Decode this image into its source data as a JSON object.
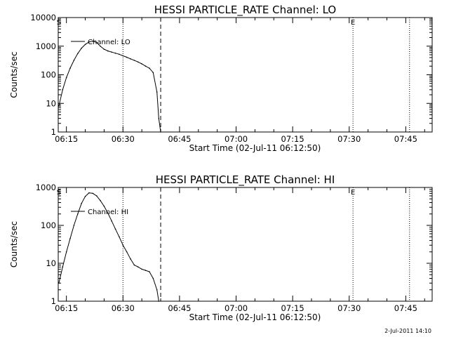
{
  "footer_stamp": "2-Jul-2011 14:10",
  "chart_data": [
    {
      "type": "line",
      "title": "HESSI PARTICLE_RATE Channel: LO",
      "xlabel": "Start Time (02-Jul-11 06:12:50)",
      "ylabel": "Counts/sec",
      "yscale": "log",
      "ylim": [
        1,
        10000
      ],
      "xlim_minutes": [
        12.83,
        112
      ],
      "x_ticks": [
        "06:15",
        "06:30",
        "06:45",
        "07:00",
        "07:15",
        "07:30",
        "07:45"
      ],
      "y_ticks": [
        "1",
        "10",
        "100",
        "1000",
        "10000"
      ],
      "grid": false,
      "legend": "top-left",
      "markers": [
        {
          "label": "S",
          "x": "06:13"
        },
        {
          "label": "E",
          "x": "07:31"
        }
      ],
      "vlines_dotted": [
        "06:30",
        "07:31",
        "07:46"
      ],
      "vlines_dashed": [
        "06:40"
      ],
      "series": [
        {
          "name": "Channel: LO",
          "x": [
            "06:13",
            "06:14",
            "06:15",
            "06:16",
            "06:17",
            "06:18",
            "06:19",
            "06:20",
            "06:21",
            "06:22",
            "06:23",
            "06:24",
            "06:25",
            "06:26",
            "06:27",
            "06:28",
            "06:29",
            "06:30",
            "06:31",
            "06:32",
            "06:33",
            "06:34",
            "06:35",
            "06:36",
            "06:37",
            "06:38",
            "06:39",
            "06:39.5",
            "06:40"
          ],
          "values": [
            8,
            30,
            80,
            170,
            320,
            550,
            850,
            1150,
            1400,
            1500,
            1350,
            1000,
            780,
            680,
            620,
            570,
            520,
            460,
            410,
            360,
            320,
            280,
            240,
            200,
            170,
            120,
            25,
            3,
            1
          ]
        }
      ]
    },
    {
      "type": "line",
      "title": "HESSI PARTICLE_RATE Channel: HI",
      "xlabel": "Start Time (02-Jul-11 06:12:50)",
      "ylabel": "Counts/sec",
      "yscale": "log",
      "ylim": [
        1,
        1000
      ],
      "xlim_minutes": [
        12.83,
        112
      ],
      "x_ticks": [
        "06:15",
        "06:30",
        "06:45",
        "07:00",
        "07:15",
        "07:30",
        "07:45"
      ],
      "y_ticks": [
        "1",
        "10",
        "100",
        "1000"
      ],
      "grid": false,
      "legend": "top-left",
      "markers": [
        {
          "label": "S",
          "x": "06:13"
        },
        {
          "label": "E",
          "x": "07:31"
        }
      ],
      "vlines_dotted": [
        "06:30",
        "07:31",
        "07:46"
      ],
      "vlines_dashed": [
        "06:40"
      ],
      "series": [
        {
          "name": "Channel: HI",
          "x": [
            "06:13",
            "06:14",
            "06:15",
            "06:16",
            "06:17",
            "06:18",
            "06:19",
            "06:20",
            "06:21",
            "06:22",
            "06:23",
            "06:24",
            "06:25",
            "06:26",
            "06:27",
            "06:28",
            "06:29",
            "06:30",
            "06:31",
            "06:32",
            "06:33",
            "06:34",
            "06:35",
            "06:36",
            "06:37",
            "06:38",
            "06:39",
            "06:39.5"
          ],
          "values": [
            3,
            8,
            20,
            45,
            100,
            200,
            380,
            580,
            720,
            700,
            600,
            450,
            320,
            210,
            130,
            80,
            50,
            30,
            20,
            13,
            9,
            8,
            7,
            6.5,
            6,
            4,
            2,
            1
          ]
        }
      ]
    }
  ]
}
